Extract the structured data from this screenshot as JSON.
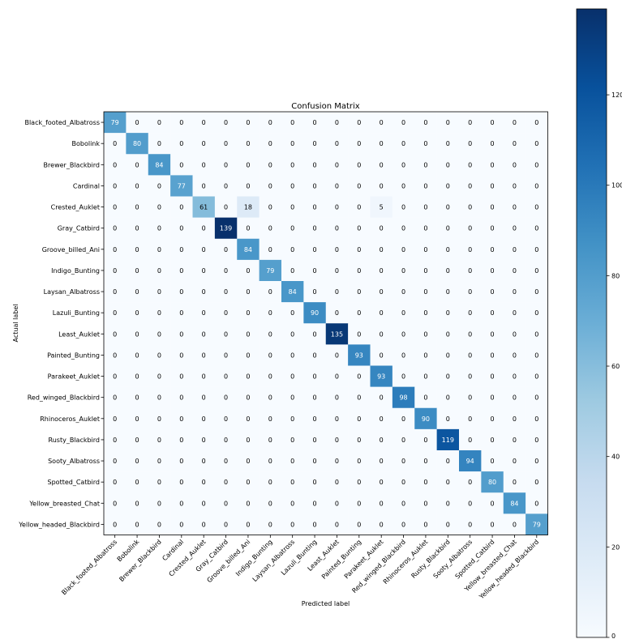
{
  "chart_data": {
    "type": "heatmap",
    "title": "Confusion Matrix",
    "xlabel": "Predicted label",
    "ylabel": "Actual label",
    "labels": [
      "Black_footed_Albatross",
      "Bobolink",
      "Brewer_Blackbird",
      "Cardinal",
      "Crested_Auklet",
      "Gray_Catbird",
      "Groove_billed_Ani",
      "Indigo_Bunting",
      "Laysan_Albatross",
      "Lazuli_Bunting",
      "Least_Auklet",
      "Painted_Bunting",
      "Parakeet_Auklet",
      "Red_winged_Blackbird",
      "Rhinoceros_Auklet",
      "Rusty_Blackbird",
      "Sooty_Albatross",
      "Spotted_Catbird",
      "Yellow_breasted_Chat",
      "Yellow_headed_Blackbird"
    ],
    "matrix": [
      [
        79,
        0,
        0,
        0,
        0,
        0,
        0,
        0,
        0,
        0,
        0,
        0,
        0,
        0,
        0,
        0,
        0,
        0,
        0,
        0
      ],
      [
        0,
        80,
        0,
        0,
        0,
        0,
        0,
        0,
        0,
        0,
        0,
        0,
        0,
        0,
        0,
        0,
        0,
        0,
        0,
        0
      ],
      [
        0,
        0,
        84,
        0,
        0,
        0,
        0,
        0,
        0,
        0,
        0,
        0,
        0,
        0,
        0,
        0,
        0,
        0,
        0,
        0
      ],
      [
        0,
        0,
        0,
        77,
        0,
        0,
        0,
        0,
        0,
        0,
        0,
        0,
        0,
        0,
        0,
        0,
        0,
        0,
        0,
        0
      ],
      [
        0,
        0,
        0,
        0,
        61,
        0,
        18,
        0,
        0,
        0,
        0,
        0,
        5,
        0,
        0,
        0,
        0,
        0,
        0,
        0
      ],
      [
        0,
        0,
        0,
        0,
        0,
        139,
        0,
        0,
        0,
        0,
        0,
        0,
        0,
        0,
        0,
        0,
        0,
        0,
        0,
        0
      ],
      [
        0,
        0,
        0,
        0,
        0,
        0,
        84,
        0,
        0,
        0,
        0,
        0,
        0,
        0,
        0,
        0,
        0,
        0,
        0,
        0
      ],
      [
        0,
        0,
        0,
        0,
        0,
        0,
        0,
        79,
        0,
        0,
        0,
        0,
        0,
        0,
        0,
        0,
        0,
        0,
        0,
        0
      ],
      [
        0,
        0,
        0,
        0,
        0,
        0,
        0,
        0,
        84,
        0,
        0,
        0,
        0,
        0,
        0,
        0,
        0,
        0,
        0,
        0
      ],
      [
        0,
        0,
        0,
        0,
        0,
        0,
        0,
        0,
        0,
        90,
        0,
        0,
        0,
        0,
        0,
        0,
        0,
        0,
        0,
        0
      ],
      [
        0,
        0,
        0,
        0,
        0,
        0,
        0,
        0,
        0,
        0,
        135,
        0,
        0,
        0,
        0,
        0,
        0,
        0,
        0,
        0
      ],
      [
        0,
        0,
        0,
        0,
        0,
        0,
        0,
        0,
        0,
        0,
        0,
        93,
        0,
        0,
        0,
        0,
        0,
        0,
        0,
        0
      ],
      [
        0,
        0,
        0,
        0,
        0,
        0,
        0,
        0,
        0,
        0,
        0,
        0,
        93,
        0,
        0,
        0,
        0,
        0,
        0,
        0
      ],
      [
        0,
        0,
        0,
        0,
        0,
        0,
        0,
        0,
        0,
        0,
        0,
        0,
        0,
        98,
        0,
        0,
        0,
        0,
        0,
        0
      ],
      [
        0,
        0,
        0,
        0,
        0,
        0,
        0,
        0,
        0,
        0,
        0,
        0,
        0,
        0,
        90,
        0,
        0,
        0,
        0,
        0
      ],
      [
        0,
        0,
        0,
        0,
        0,
        0,
        0,
        0,
        0,
        0,
        0,
        0,
        0,
        0,
        0,
        119,
        0,
        0,
        0,
        0
      ],
      [
        0,
        0,
        0,
        0,
        0,
        0,
        0,
        0,
        0,
        0,
        0,
        0,
        0,
        0,
        0,
        0,
        94,
        0,
        0,
        0
      ],
      [
        0,
        0,
        0,
        0,
        0,
        0,
        0,
        0,
        0,
        0,
        0,
        0,
        0,
        0,
        0,
        0,
        0,
        80,
        0,
        0
      ],
      [
        0,
        0,
        0,
        0,
        0,
        0,
        0,
        0,
        0,
        0,
        0,
        0,
        0,
        0,
        0,
        0,
        0,
        0,
        84,
        0
      ],
      [
        0,
        0,
        0,
        0,
        0,
        0,
        0,
        0,
        0,
        0,
        0,
        0,
        0,
        0,
        0,
        0,
        0,
        0,
        0,
        79
      ]
    ],
    "colorbar": {
      "range": [
        0,
        139
      ],
      "ticks": [
        0,
        20,
        40,
        60,
        80,
        100,
        120
      ],
      "colormap": "Blues"
    },
    "threshold_text_color": 69.5,
    "colors": {
      "low": "#f7fbff",
      "high": "#08306b",
      "text_dark": "#000000",
      "text_light": "#ffffff"
    }
  }
}
